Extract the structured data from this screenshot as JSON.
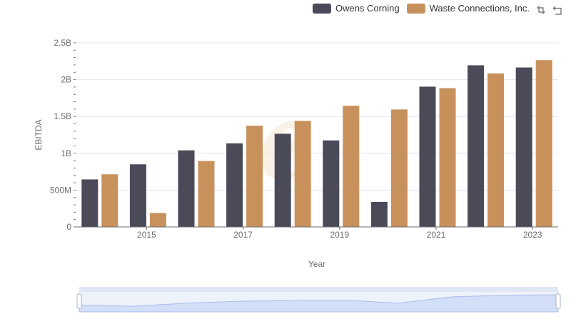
{
  "legend": {
    "items": [
      {
        "label": "Owens Corning",
        "color": "#4a4a58"
      },
      {
        "label": "Waste Connections, Inc.",
        "color": "#c8915c"
      }
    ]
  },
  "toolbox": {
    "icons": [
      "zoom-icon",
      "restore-icon"
    ]
  },
  "watermark": "e",
  "chart_data": {
    "type": "bar",
    "xlabel": "Year",
    "ylabel": "EBITDA",
    "ylim": [
      0,
      2500000000
    ],
    "y_ticks": [
      "0",
      "500M",
      "1B",
      "1.5B",
      "2B",
      "2.5B"
    ],
    "x_tick_labels": [
      "2015",
      "2017",
      "2019",
      "2021",
      "2023"
    ],
    "categories": [
      "2014",
      "2015",
      "2016",
      "2017",
      "2018",
      "2019",
      "2020",
      "2021",
      "2022",
      "2023"
    ],
    "series": [
      {
        "name": "Owens Corning",
        "color": "#4a4a58",
        "values": [
          645000000,
          850000000,
          1040000000,
          1135000000,
          1265000000,
          1175000000,
          340000000,
          1905000000,
          2195000000,
          2165000000
        ]
      },
      {
        "name": "Waste Connections, Inc.",
        "color": "#c8915c",
        "values": [
          715000000,
          190000000,
          895000000,
          1375000000,
          1440000000,
          1645000000,
          1595000000,
          1885000000,
          2085000000,
          2265000000
        ]
      }
    ],
    "grid": true,
    "legend_position": "top-right",
    "datazoom": {
      "range": [
        0,
        100
      ]
    }
  }
}
